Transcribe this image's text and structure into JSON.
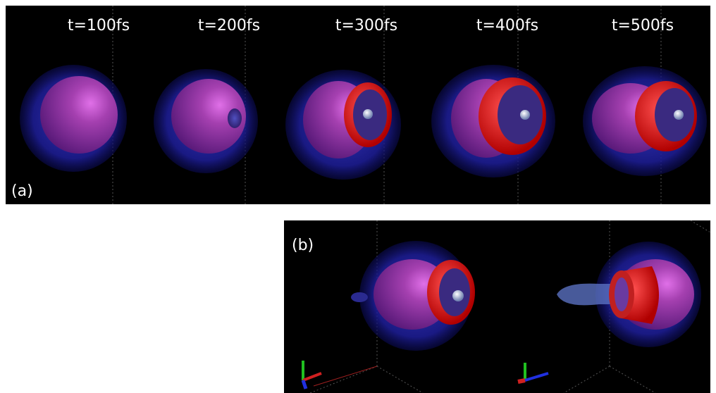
{
  "panel_a": {
    "label": "(a)",
    "times": [
      "t=100fs",
      "t=200fs",
      "t=300fs",
      "t=400fs",
      "t=500fs"
    ]
  },
  "panel_b": {
    "label": "(b)"
  }
}
